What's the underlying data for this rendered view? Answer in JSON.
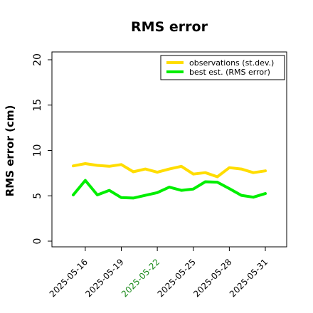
{
  "chart_data": {
    "type": "line",
    "title": "RMS error",
    "xlabel": "",
    "ylabel": "RMS error (cm)",
    "ylim": [
      0,
      21
    ],
    "yticks": [
      0,
      5,
      10,
      15,
      20
    ],
    "x": [
      "2025-05-15",
      "2025-05-16",
      "2025-05-17",
      "2025-05-18",
      "2025-05-19",
      "2025-05-20",
      "2025-05-21",
      "2025-05-22",
      "2025-05-23",
      "2025-05-24",
      "2025-05-25",
      "2025-05-26",
      "2025-05-27",
      "2025-05-28",
      "2025-05-29",
      "2025-05-30",
      "2025-05-31"
    ],
    "xticks": [
      "2025-05-16",
      "2025-05-19",
      "2025-05-22",
      "2025-05-25",
      "2025-05-28",
      "2025-05-31"
    ],
    "xtick_colors": [
      "#000000",
      "#000000",
      "#1a8a1a",
      "#000000",
      "#000000",
      "#000000"
    ],
    "grid": false,
    "legend_position": "top-right",
    "series": [
      {
        "name": "observations (st.dev.)",
        "color": "#ffdd00",
        "values": [
          8.3,
          8.55,
          8.35,
          8.25,
          8.45,
          7.65,
          7.95,
          7.6,
          7.95,
          8.25,
          7.4,
          7.55,
          7.1,
          8.1,
          7.95,
          7.55,
          7.75
        ]
      },
      {
        "name": "best est. (RMS error)",
        "color": "#00ee00",
        "values": [
          5.1,
          6.7,
          5.1,
          5.6,
          4.8,
          4.75,
          5.05,
          5.35,
          5.95,
          5.6,
          5.75,
          6.55,
          6.5,
          5.8,
          5.05,
          4.85,
          5.25
        ]
      }
    ]
  }
}
